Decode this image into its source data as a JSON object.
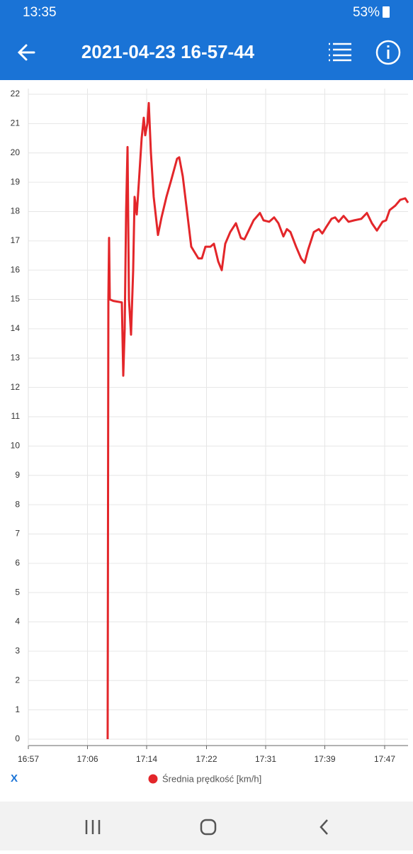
{
  "status": {
    "time": "13:35",
    "battery": "53%"
  },
  "header": {
    "title": "2021-04-23 16-57-44"
  },
  "chart_data": {
    "type": "line",
    "x": [
      1028.83,
      1028.93,
      1029.03,
      1029.13,
      1029.63,
      1030.82,
      1031.02,
      1031.22,
      1031.42,
      1031.62,
      1031.82,
      1032.11,
      1032.41,
      1032.61,
      1032.91,
      1033.21,
      1033.6,
      1033.9,
      1034.1,
      1034.4,
      1034.6,
      1034.9,
      1035.29,
      1035.89,
      1036.39,
      1037.08,
      1037.78,
      1038.57,
      1038.87,
      1039.37,
      1039.97,
      1040.56,
      1041.06,
      1041.56,
      1042.05,
      1042.55,
      1043.25,
      1043.74,
      1044.34,
      1044.84,
      1045.33,
      1046.03,
      1046.83,
      1047.52,
      1048.02,
      1048.52,
      1049.31,
      1050.2,
      1050.7,
      1051.5,
      1052.19,
      1052.79,
      1053.49,
      1053.98,
      1054.48,
      1055.27,
      1055.97,
      1056.47,
      1056.96,
      1057.76,
      1058.46,
      1058.95,
      1059.45,
      1060.24,
      1060.74,
      1061.24,
      1061.93,
      1062.63,
      1063.43,
      1064.42,
      1065.21,
      1065.91,
      1066.61,
      1067.4,
      1067.9,
      1068.4,
      1069.19,
      1069.89,
      1070.58,
      1070.98
    ],
    "series": [
      {
        "name": "Średnia prędkość [km/h]",
        "color": "#e3262a",
        "values": [
          0,
          15,
          17.1,
          15,
          14.95,
          14.9,
          12.4,
          14,
          18,
          20.2,
          15,
          13.8,
          16,
          18.5,
          17.9,
          19,
          20.5,
          21.2,
          20.6,
          21,
          21.7,
          20,
          18.5,
          17.2,
          17.8,
          18.5,
          19.1,
          19.8,
          19.85,
          19.2,
          18,
          16.8,
          16.6,
          16.4,
          16.4,
          16.8,
          16.8,
          16.9,
          16.3,
          16,
          16.9,
          17.3,
          17.6,
          17.1,
          17.05,
          17.3,
          17.7,
          17.95,
          17.7,
          17.65,
          17.8,
          17.6,
          17.15,
          17.4,
          17.3,
          16.8,
          16.4,
          16.25,
          16.7,
          17.3,
          17.4,
          17.25,
          17.45,
          17.75,
          17.8,
          17.65,
          17.85,
          17.65,
          17.7,
          17.75,
          17.95,
          17.6,
          17.35,
          17.65,
          17.7,
          18.05,
          18.2,
          18.4,
          18.45,
          18.3
        ]
      }
    ],
    "xlim": [
      1017.7,
      1070.98
    ],
    "xticks": [
      {
        "value": 1017.7,
        "label": "16:57"
      },
      {
        "value": 1026.0,
        "label": "17:06"
      },
      {
        "value": 1034.3,
        "label": "17:14"
      },
      {
        "value": 1042.7,
        "label": "17:22"
      },
      {
        "value": 1051.0,
        "label": "17:31"
      },
      {
        "value": 1059.3,
        "label": "17:39"
      },
      {
        "value": 1067.7,
        "label": "17:47"
      }
    ],
    "ylim": [
      0,
      22
    ],
    "yticks": [
      0,
      1,
      2,
      3,
      4,
      5,
      6,
      7,
      8,
      9,
      10,
      11,
      12,
      13,
      14,
      15,
      16,
      17,
      18,
      19,
      20,
      21,
      22
    ],
    "grid": true
  },
  "footer": {
    "x_button": "X"
  }
}
